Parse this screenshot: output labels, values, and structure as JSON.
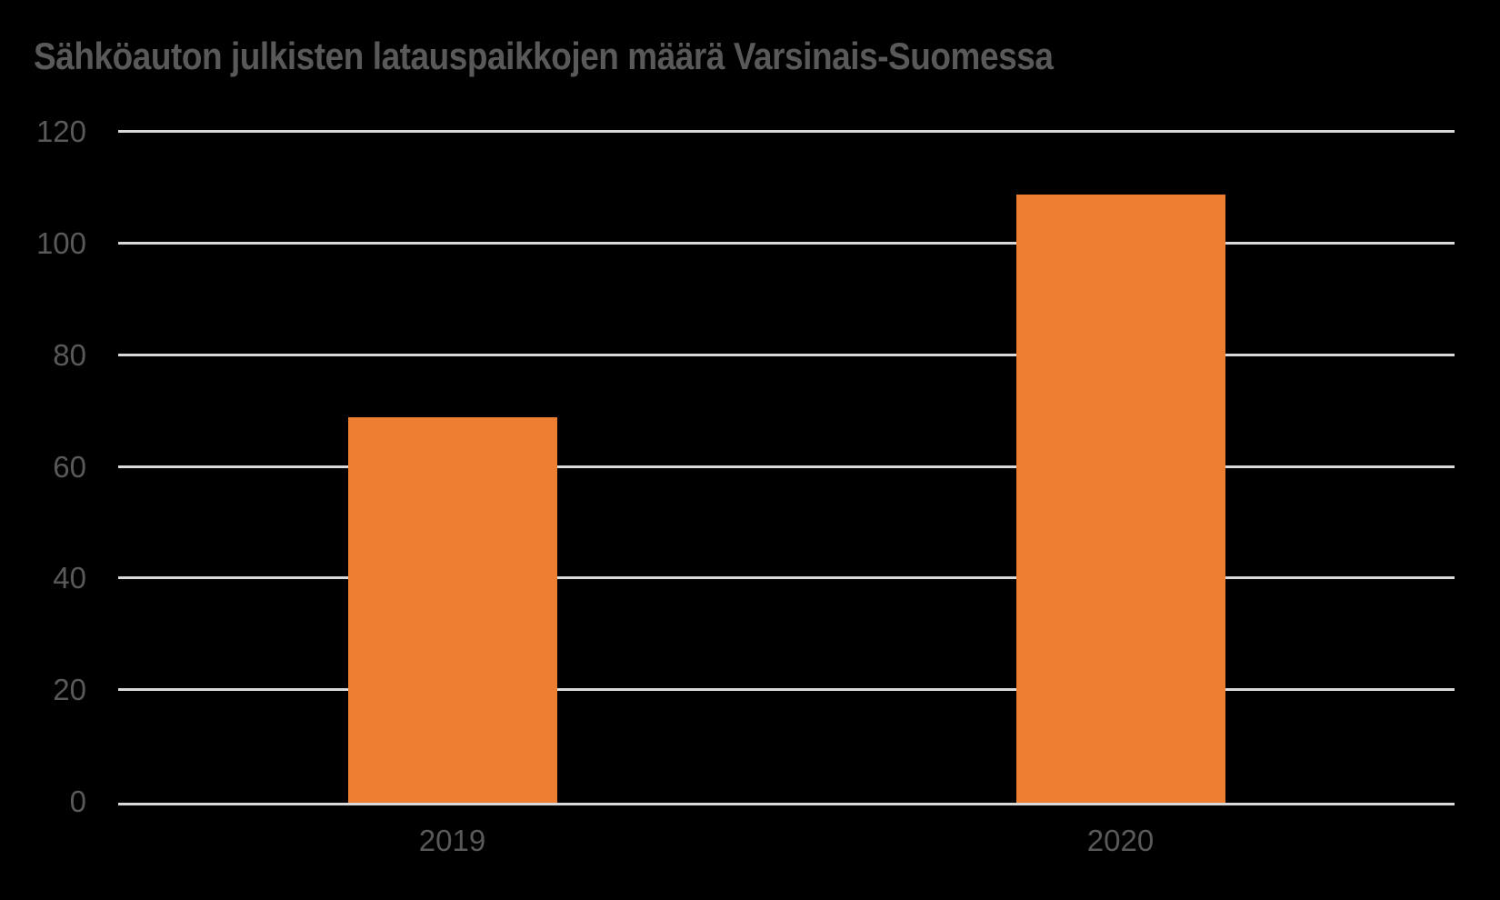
{
  "chart": {
    "title": "Sähköauton julkisten latauspaikkojen määrä Varsinais-Suomessa"
  },
  "chart_data": {
    "type": "bar",
    "title": "Sähköauton julkisten latauspaikkojen määrä Varsinais-Suomessa",
    "categories": [
      "2019",
      "2020"
    ],
    "values": [
      69,
      109
    ],
    "xlabel": "",
    "ylabel": "",
    "ylim": [
      0,
      120
    ],
    "ytick_step": 20,
    "ytick_labels": [
      "0",
      "20",
      "40",
      "60",
      "80",
      "100",
      "120"
    ],
    "grid": true,
    "legend": false,
    "bar_color": "#ED7D31",
    "gridline_color": "#D9D9D9",
    "text_color": "#595959",
    "background_color": "#000000"
  }
}
